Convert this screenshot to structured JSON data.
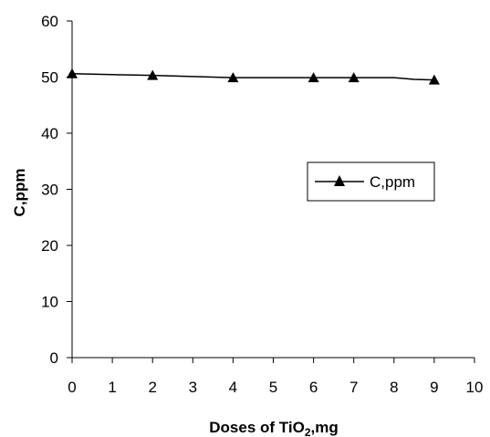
{
  "chart_data": {
    "type": "line",
    "xlabel_main": "Doses of TiO",
    "xlabel_sub": "2",
    "xlabel_suffix": ",mg",
    "ylabel": "C,ppm",
    "xlim": [
      0,
      10
    ],
    "ylim": [
      0,
      60
    ],
    "x_ticks": [
      "0",
      "1",
      "2",
      "3",
      "4",
      "5",
      "6",
      "7",
      "8",
      "9",
      "10"
    ],
    "y_ticks": [
      "0",
      "10",
      "20",
      "30",
      "40",
      "50",
      "60"
    ],
    "grid": false,
    "legend_position": "right",
    "series": [
      {
        "name": "C,ppm",
        "color": "#000000",
        "marker": "triangle",
        "line_x": [
          0,
          2,
          4,
          6,
          7,
          8,
          8.5,
          9
        ],
        "line_y": [
          50.6,
          50.3,
          49.9,
          49.9,
          49.9,
          49.9,
          49.6,
          49.5
        ],
        "marker_x": [
          0,
          2,
          4,
          6,
          7,
          9
        ],
        "marker_y": [
          50.6,
          50.3,
          49.9,
          49.9,
          49.9,
          49.5
        ]
      }
    ]
  }
}
